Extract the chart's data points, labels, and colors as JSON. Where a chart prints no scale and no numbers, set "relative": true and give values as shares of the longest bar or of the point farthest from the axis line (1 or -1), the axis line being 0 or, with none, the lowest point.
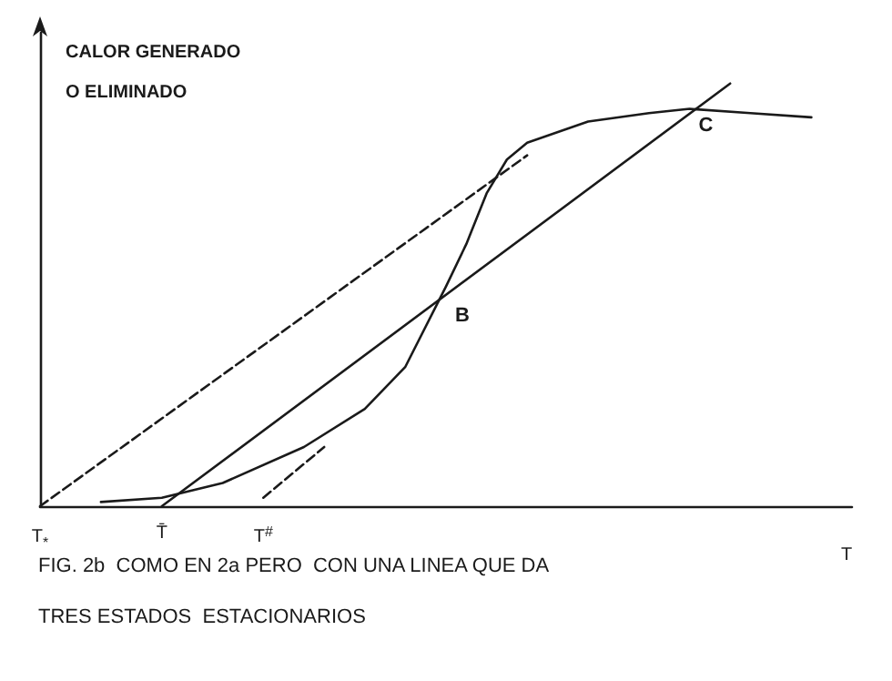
{
  "chart_data": {
    "type": "line",
    "relative": true,
    "title": "FIG. 2b  COMO EN 2a PERO  CON UNA LINEA QUE DA\nTRES ESTADOS  ESTACIONARIOS",
    "ylabel": "CALOR GENERADO\nO ELIMINADO",
    "xlabel": "T",
    "grid": false,
    "marker": "none",
    "categories": [
      "T$_{*}$",
      null,
      null,
      null,
      null,
      null,
      "T̄",
      null,
      null,
      null,
      null,
      "T$^{#}$",
      null,
      null,
      null,
      null,
      null,
      null,
      null,
      null,
      null,
      null,
      null,
      null,
      null,
      null,
      null,
      null,
      null,
      null,
      null,
      null,
      null,
      null,
      null,
      null,
      null,
      null,
      null,
      null,
      null
    ],
    "series": [
      {
        "color": "#1a1a1a",
        "line_style": "solid",
        "values": [
          null,
          null,
          null,
          0.01,
          null,
          null,
          0.02,
          null,
          null,
          0.055,
          null,
          null,
          null,
          0.14,
          null,
          null,
          0.23,
          null,
          0.33,
          null,
          0.52,
          0.62,
          0.74,
          0.82,
          0.86,
          null,
          null,
          0.91,
          null,
          null,
          0.93,
          null,
          0.94,
          null,
          null,
          0.93,
          null,
          null,
          0.92,
          null,
          null
        ]
      },
      {
        "color": "#1a1a1a",
        "line_style": "solid",
        "values": [
          null,
          null,
          null,
          null,
          null,
          null,
          0,
          null,
          null,
          null,
          null,
          null,
          null,
          null,
          null,
          null,
          null,
          null,
          null,
          null,
          null,
          null,
          null,
          null,
          null,
          null,
          null,
          null,
          null,
          null,
          null,
          null,
          null,
          null,
          1,
          null,
          null,
          null,
          null,
          null,
          null
        ]
      },
      {
        "color": "#1a1a1a",
        "line_style": "dashed",
        "values": [
          0,
          null,
          null,
          null,
          null,
          null,
          null,
          null,
          null,
          null,
          null,
          null,
          null,
          null,
          null,
          null,
          null,
          null,
          null,
          null,
          null,
          null,
          null,
          null,
          0.83,
          null,
          null,
          null,
          null,
          null,
          null,
          null,
          null,
          null,
          null,
          null,
          null,
          null,
          null,
          null,
          null
        ]
      },
      {
        "color": "#1a1a1a",
        "line_style": "dashed",
        "values": [
          null,
          null,
          null,
          null,
          null,
          null,
          null,
          null,
          null,
          null,
          null,
          0.02,
          null,
          null,
          0.14,
          null,
          null,
          null,
          null,
          null,
          null,
          null,
          null,
          null,
          null,
          null,
          null,
          null,
          null,
          null,
          null,
          null,
          null,
          null,
          null,
          null,
          null,
          null,
          null,
          null,
          null
        ]
      }
    ],
    "annotations": [
      "B",
      "C"
    ]
  }
}
